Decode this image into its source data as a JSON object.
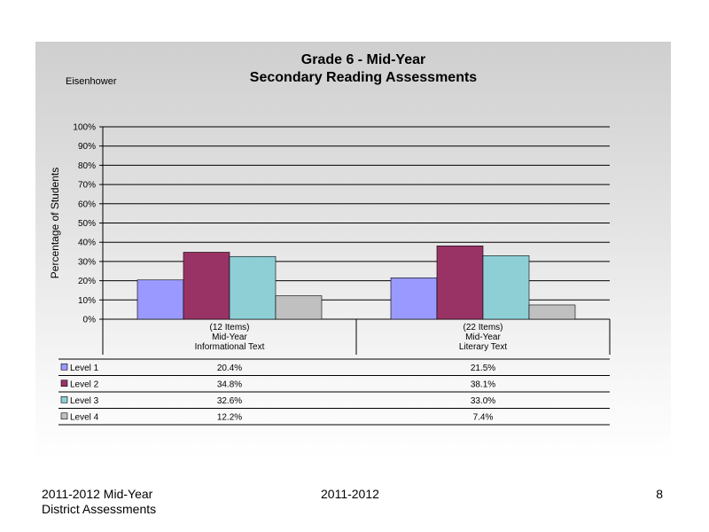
{
  "chart_data": {
    "type": "bar",
    "title": [
      "Grade 6 - Mid-Year",
      "Secondary Reading Assessments"
    ],
    "subtitle": "Eisenhower",
    "ylabel": "Percentage of Students",
    "ylim": [
      0,
      100
    ],
    "yticks": [
      "0%",
      "10%",
      "20%",
      "30%",
      "40%",
      "50%",
      "60%",
      "70%",
      "80%",
      "90%",
      "100%"
    ],
    "categories": [
      [
        "(12 Items)",
        "Mid-Year",
        "Informational Text"
      ],
      [
        "(22 Items)",
        "Mid-Year",
        "Literary Text"
      ]
    ],
    "series": [
      {
        "name": "Level 1",
        "color": "#9999ff",
        "values": [
          20.4,
          21.5
        ],
        "labels": [
          "20.4%",
          "21.5%"
        ]
      },
      {
        "name": "Level 2",
        "color": "#993366",
        "values": [
          34.8,
          38.1
        ],
        "labels": [
          "34.8%",
          "38.1%"
        ]
      },
      {
        "name": "Level 3",
        "color": "#8ecfd6",
        "values": [
          32.6,
          33.0
        ],
        "labels": [
          "32.6%",
          "33.0%"
        ]
      },
      {
        "name": "Level 4",
        "color": "#c0c0c0",
        "values": [
          12.2,
          7.4
        ],
        "labels": [
          "12.2%",
          "7.4%"
        ]
      }
    ],
    "grid": true,
    "legend": "data-table"
  },
  "footer": {
    "left_line1": "2011-2012  Mid-Year",
    "left_line2": "District Assessments",
    "center": "2011-2012",
    "page": "8"
  }
}
